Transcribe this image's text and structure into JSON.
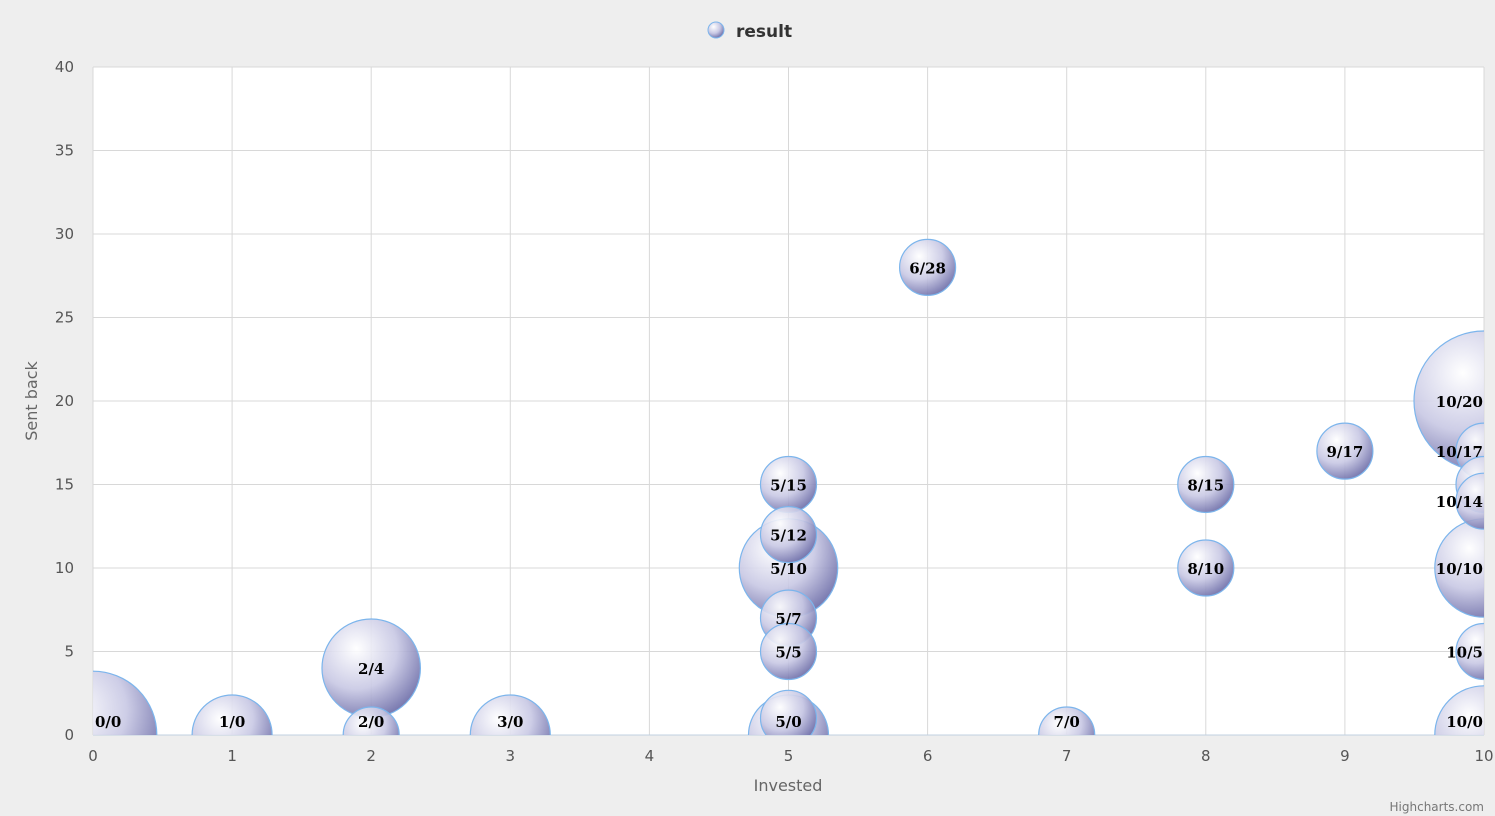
{
  "legend": {
    "series_name": "result"
  },
  "credits": "Highcharts.com",
  "chart_data": {
    "type": "bubble",
    "xlabel": "Invested",
    "ylabel": "Sent back",
    "xlim": [
      0,
      10
    ],
    "ylim": [
      0,
      40
    ],
    "xticks": [
      "0",
      "1",
      "2",
      "3",
      "4",
      "5",
      "6",
      "7",
      "8",
      "9",
      "10"
    ],
    "yticks": [
      "0",
      "5",
      "10",
      "15",
      "20",
      "25",
      "30",
      "35",
      "40"
    ],
    "grid": true,
    "legend_position": "top-center",
    "colors": {
      "bubble_fill": "#b8b8dc",
      "bubble_stroke": "#7cb5ec",
      "plot_bg": "#ffffff",
      "page_bg": "#eeeeee",
      "grid": "#d8d8d8",
      "axis": "#c0d0e0"
    },
    "series": [
      {
        "name": "result",
        "points": [
          {
            "x": 0,
            "y": 0,
            "z": 5,
            "label": "0/0"
          },
          {
            "x": 1,
            "y": 0,
            "z": 2,
            "label": "1/0"
          },
          {
            "x": 2,
            "y": 4,
            "z": 3,
            "label": "2/4"
          },
          {
            "x": 2,
            "y": 0,
            "z": 1,
            "label": "2/0"
          },
          {
            "x": 3,
            "y": 0,
            "z": 2,
            "label": "3/0"
          },
          {
            "x": 5,
            "y": 15,
            "z": 1,
            "label": "5/15"
          },
          {
            "x": 5,
            "y": 12,
            "z": 1,
            "label": "5/12"
          },
          {
            "x": 5,
            "y": 10,
            "z": 3,
            "label": "5/10"
          },
          {
            "x": 5,
            "y": 7,
            "z": 1,
            "label": "5/7"
          },
          {
            "x": 5,
            "y": 5,
            "z": 1,
            "label": "5/5"
          },
          {
            "x": 5,
            "y": 1,
            "z": 1,
            "label": ""
          },
          {
            "x": 5,
            "y": 0,
            "z": 2,
            "label": "5/0"
          },
          {
            "x": 6,
            "y": 28,
            "z": 1,
            "label": "6/28"
          },
          {
            "x": 7,
            "y": 0,
            "z": 1,
            "label": "7/0"
          },
          {
            "x": 8,
            "y": 15,
            "z": 1,
            "label": "8/15"
          },
          {
            "x": 8,
            "y": 10,
            "z": 1,
            "label": "8/10"
          },
          {
            "x": 9,
            "y": 17,
            "z": 1,
            "label": "9/17"
          },
          {
            "x": 10,
            "y": 20,
            "z": 6,
            "label": "10/20"
          },
          {
            "x": 10,
            "y": 17,
            "z": 1,
            "label": "10/17"
          },
          {
            "x": 10,
            "y": 15,
            "z": 1,
            "label": ""
          },
          {
            "x": 10,
            "y": 14,
            "z": 1,
            "label": "10/14"
          },
          {
            "x": 10,
            "y": 10,
            "z": 3,
            "label": "10/10"
          },
          {
            "x": 10,
            "y": 5,
            "z": 1,
            "label": "10/5"
          },
          {
            "x": 10,
            "y": 0,
            "z": 3,
            "label": "10/0"
          }
        ]
      }
    ]
  }
}
